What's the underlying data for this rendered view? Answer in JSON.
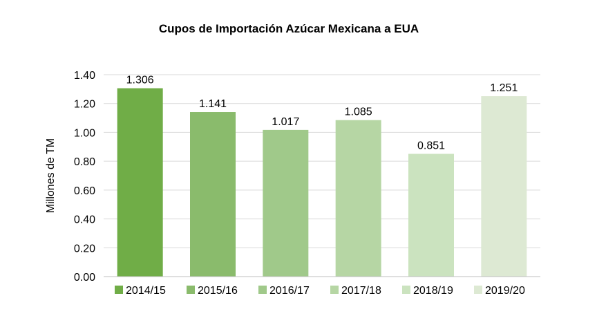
{
  "chart_data": {
    "type": "bar",
    "title": "Cupos de Importación Azúcar Mexicana a EUA",
    "xlabel": "",
    "ylabel": "Millones de TM",
    "ylim": [
      0,
      1.4
    ],
    "y_ticks": [
      "0.00",
      "0.20",
      "0.40",
      "0.60",
      "0.80",
      "1.00",
      "1.20",
      "1.40"
    ],
    "grid": true,
    "legend_position": "bottom",
    "categories": [
      "2014/15",
      "2015/16",
      "2016/17",
      "2017/18",
      "2018/19",
      "2019/20"
    ],
    "values": [
      1.306,
      1.141,
      1.017,
      1.085,
      0.851,
      1.251
    ],
    "data_labels": [
      "1.306",
      "1.141",
      "1.017",
      "1.085",
      "0.851",
      "1.251"
    ],
    "colors": [
      "#70ad47",
      "#8abb6c",
      "#a0c98a",
      "#b6d6a4",
      "#cbe3bf",
      "#dde9d3"
    ]
  }
}
